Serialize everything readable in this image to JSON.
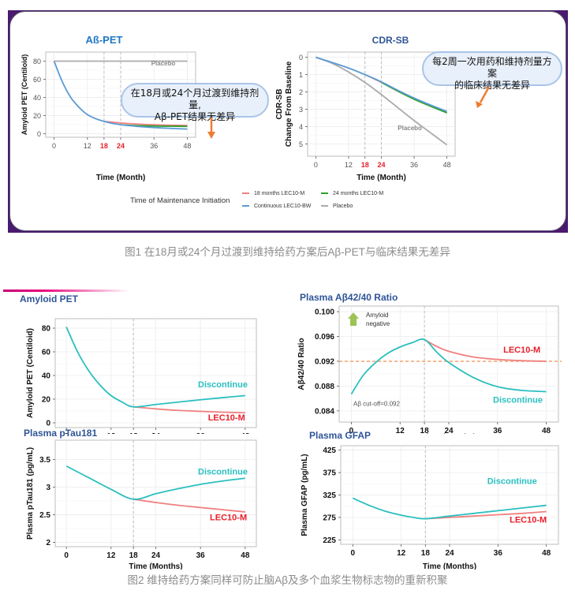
{
  "figure1": {
    "caption": "图1 在18月或24个月过渡到维持给药方案后Aβ-PET与临床结果无差异",
    "legend": {
      "title": "Time of Maintenance Initiation",
      "items": [
        {
          "label": "18 months LEC10-M",
          "color": "#f08080"
        },
        {
          "label": "24 months LEC10-M",
          "color": "#2ca02c"
        },
        {
          "label": "Continuous LEC10-BW",
          "color": "#5b9bd5"
        },
        {
          "label": "Placebo",
          "color": "#aaaaaa"
        }
      ]
    },
    "callout_left": {
      "line1": "在18月或24个月过渡到维持剂量,",
      "line2": "Aβ-PET结果无差异"
    },
    "callout_right": {
      "line1": "每2周一次用药和维持剂量方案",
      "line2": "的临床结果无差异"
    }
  },
  "figure2": {
    "caption": "图2 维持给药方案同样可防止脑Aβ及多个血浆生物标志物的重新积聚"
  },
  "colors": {
    "title_blue": "#2f5597",
    "title_blue_top": "#1f77c4",
    "red_tick": "#e8202a",
    "teal": "#2bbfbf",
    "salmon": "#f08080",
    "arrow": "#ed7d31"
  },
  "chart_data": [
    {
      "id": "abpet",
      "type": "line",
      "title": "Aß-PET",
      "xlabel": "Time (Month)",
      "ylabel": "Amyloid PET (Centiloid)",
      "xlim": [
        -3,
        51
      ],
      "ylim": [
        -4,
        90
      ],
      "xticks": [
        0,
        12,
        18,
        24,
        36,
        48
      ],
      "xtick_labels": [
        "0",
        "12",
        "18",
        "24",
        "36",
        "48"
      ],
      "xtick_highlight": [
        "18",
        "24"
      ],
      "yticks": [
        0,
        20,
        40,
        60,
        80
      ],
      "ytick_labels": [
        "0",
        "20",
        "40",
        "60",
        "80"
      ],
      "vlines": [
        18,
        24
      ],
      "annotations": [
        {
          "text": "Placebo",
          "x": 35,
          "y": 75
        }
      ],
      "series": [
        {
          "name": "Placebo",
          "color": "#aaaaaa",
          "x": [
            0,
            48
          ],
          "y": [
            80,
            80
          ]
        },
        {
          "name": "18 months LEC10-M",
          "color": "#f08080",
          "x": [
            18,
            24,
            30,
            36,
            42,
            48
          ],
          "y": [
            13.5,
            11.8,
            10.6,
            9.8,
            9.3,
            9
          ]
        },
        {
          "name": "24 months LEC10-M",
          "color": "#2ca02c",
          "x": [
            24,
            30,
            36,
            42,
            48
          ],
          "y": [
            9.8,
            8.8,
            8.4,
            8.2,
            8
          ]
        },
        {
          "name": "Continuous LEC10-BW",
          "color": "#5b9bd5",
          "x": [
            0,
            3,
            6,
            9,
            12,
            15,
            18,
            21,
            24,
            30,
            36,
            42,
            48
          ],
          "y": [
            80,
            57,
            40,
            29,
            21,
            16.5,
            13.5,
            11.3,
            9.8,
            8,
            6.7,
            5.8,
            5
          ]
        }
      ]
    },
    {
      "id": "cdrsb",
      "type": "line",
      "title": "CDR-SB",
      "xlabel": "Time (Month)",
      "ylabel": "CDR-SB",
      "ylabel2": "Change From Baseline",
      "xlim": [
        -3,
        51
      ],
      "ylim": [
        -0.3,
        5.7
      ],
      "y_inverted": true,
      "xticks": [
        0,
        12,
        18,
        24,
        36,
        48
      ],
      "xtick_labels": [
        "0",
        "12",
        "18",
        "24",
        "36",
        "48"
      ],
      "xtick_highlight": [
        "18",
        "24"
      ],
      "yticks": [
        0,
        1,
        2,
        3,
        4,
        5
      ],
      "ytick_labels": [
        "0",
        "1",
        "2",
        "3",
        "4",
        "5"
      ],
      "vlines": [
        18,
        24
      ],
      "annotations": [
        {
          "text": "Placebo",
          "x": 30,
          "y": 4.2
        }
      ],
      "series": [
        {
          "name": "Placebo",
          "color": "#aaaaaa",
          "x": [
            0,
            6,
            12,
            18,
            24,
            30,
            36,
            42,
            48
          ],
          "y": [
            0,
            0.35,
            0.85,
            1.45,
            2.15,
            2.9,
            3.65,
            4.35,
            5.05
          ]
        },
        {
          "name": "18 months LEC10-M",
          "color": "#f08080",
          "x": [
            18,
            24,
            30,
            36,
            42,
            48
          ],
          "y": [
            1.0,
            1.45,
            1.95,
            2.4,
            2.8,
            3.2
          ]
        },
        {
          "name": "24 months LEC10-M",
          "color": "#2ca02c",
          "x": [
            24,
            30,
            36,
            42,
            48
          ],
          "y": [
            1.45,
            1.95,
            2.42,
            2.82,
            3.2
          ]
        },
        {
          "name": "Continuous LEC10-BW",
          "color": "#5b9bd5",
          "x": [
            0,
            6,
            12,
            18,
            24,
            30,
            36,
            42,
            48
          ],
          "y": [
            0,
            0.3,
            0.62,
            1.0,
            1.42,
            1.9,
            2.35,
            2.75,
            3.12
          ]
        }
      ]
    },
    {
      "id": "amyloid-pet",
      "type": "line",
      "title": "Amyloid PET",
      "xlabel": "Time (Months)",
      "ylabel": "Amyloid PET (Centiloid)",
      "xlim": [
        -3,
        51
      ],
      "ylim": [
        -4,
        88
      ],
      "xticks": [
        0,
        12,
        18,
        24,
        36,
        48
      ],
      "xtick_labels": [
        "0",
        "12",
        "18",
        "24",
        "36",
        "48"
      ],
      "yticks": [
        0,
        20,
        40,
        60,
        80
      ],
      "ytick_labels": [
        "0",
        "20",
        "40",
        "60",
        "80"
      ],
      "vlines": [
        18
      ],
      "labels": [
        {
          "text": "Discontinue",
          "color": "#2bbfbf",
          "x": 42,
          "y": 30
        },
        {
          "text": "LEC10-M",
          "color": "#e8202a",
          "x": 43,
          "y": 2
        }
      ],
      "series": [
        {
          "name": "LEC10-M",
          "color": "#f08080",
          "x": [
            18,
            24,
            30,
            36,
            42,
            48
          ],
          "y": [
            13.5,
            11.8,
            10.5,
            9.7,
            9,
            8.5
          ]
        },
        {
          "name": "Discontinue",
          "color": "#2bbfbf",
          "x": [
            0,
            3,
            6,
            9,
            12,
            15,
            18,
            24,
            30,
            36,
            42,
            48
          ],
          "y": [
            81,
            60,
            44,
            32,
            23,
            17.5,
            13.5,
            15.5,
            17.5,
            19.5,
            21.3,
            23
          ]
        }
      ]
    },
    {
      "id": "ab4240",
      "type": "line",
      "title": "Plasma Aβ42/40 Ratio",
      "xlabel": "Time (Months)",
      "ylabel": "Aβ42/40 Ratio",
      "xlim": [
        -3,
        51
      ],
      "ylim": [
        0.0822,
        0.1009
      ],
      "xticks": [
        0,
        12,
        18,
        24,
        36,
        48
      ],
      "xtick_labels": [
        "0",
        "12",
        "18",
        "24",
        "36",
        "48"
      ],
      "yticks": [
        0.084,
        0.088,
        0.092,
        0.096,
        0.1
      ],
      "ytick_labels": [
        "0.084",
        "0.088",
        "0.092",
        "0.096",
        "0.100"
      ],
      "vlines": [
        18
      ],
      "hline": {
        "y": 0.092,
        "color": "#f4a46b"
      },
      "annotations": [
        {
          "text": "Aβ cut-off=0.092",
          "x": 0.5,
          "y": 0.0848
        }
      ],
      "amyloid_negative_label": [
        "Amyloid",
        "negative"
      ],
      "labels": [
        {
          "text": "LEC10-M",
          "color": "#e8202a",
          "x": 42,
          "y": 0.0934
        },
        {
          "text": "Discontinue",
          "color": "#2bbfbf",
          "x": 41,
          "y": 0.0853
        }
      ],
      "series": [
        {
          "name": "LEC10-M",
          "color": "#f08080",
          "x": [
            18,
            21,
            24,
            30,
            36,
            42,
            48
          ],
          "y": [
            0.0955,
            0.0944,
            0.0936,
            0.0927,
            0.0923,
            0.0921,
            0.092
          ]
        },
        {
          "name": "Discontinue",
          "color": "#2bbfbf",
          "x": [
            0,
            3,
            6,
            9,
            12,
            15,
            18,
            21,
            24,
            30,
            36,
            42,
            48
          ],
          "y": [
            0.0867,
            0.0898,
            0.0918,
            0.0933,
            0.0943,
            0.095,
            0.0955,
            0.0935,
            0.0918,
            0.0894,
            0.0879,
            0.0873,
            0.0871
          ]
        }
      ]
    },
    {
      "id": "ptau181",
      "type": "line",
      "title": "Plasma pTau181",
      "xlabel": "Time (Months)",
      "ylabel": "Plasma pTau181 (pg/mL)",
      "xlim": [
        -3,
        51
      ],
      "ylim": [
        1.92,
        3.85
      ],
      "xticks": [
        0,
        12,
        18,
        24,
        36,
        48
      ],
      "xtick_labels": [
        "0",
        "12",
        "18",
        "24",
        "36",
        "48"
      ],
      "yticks": [
        2,
        2.5,
        3,
        3.5
      ],
      "ytick_labels": [
        "2",
        "2.5",
        "3",
        "3.5"
      ],
      "vlines": [
        18
      ],
      "labels": [
        {
          "text": "Discontinue",
          "color": "#2bbfbf",
          "x": 42,
          "y": 3.23
        },
        {
          "text": "LEC10-M",
          "color": "#e8202a",
          "x": 43.5,
          "y": 2.4
        }
      ],
      "series": [
        {
          "name": "LEC10-M",
          "color": "#f08080",
          "x": [
            18,
            24,
            30,
            36,
            42,
            48
          ],
          "y": [
            2.78,
            2.72,
            2.67,
            2.63,
            2.59,
            2.55
          ]
        },
        {
          "name": "Discontinue",
          "color": "#2bbfbf",
          "x": [
            0,
            6,
            12,
            18,
            24,
            30,
            36,
            42,
            48
          ],
          "y": [
            3.38,
            3.17,
            2.96,
            2.78,
            2.88,
            2.97,
            3.05,
            3.11,
            3.16
          ]
        }
      ]
    },
    {
      "id": "gfap",
      "type": "line",
      "title": "Plasma GFAP",
      "xlabel": "Time (Months)",
      "ylabel": "Plasma GFAP (pg/mL)",
      "xlim": [
        -3,
        51
      ],
      "ylim": [
        215,
        435
      ],
      "xticks": [
        0,
        12,
        18,
        24,
        36,
        48
      ],
      "xtick_labels": [
        "0",
        "12",
        "18",
        "24",
        "36",
        "48"
      ],
      "yticks": [
        225,
        275,
        325,
        375,
        425
      ],
      "ytick_labels": [
        "225",
        "275",
        "325",
        "375",
        "425"
      ],
      "vlines": [
        18
      ],
      "labels": [
        {
          "text": "Discontinue",
          "color": "#2bbfbf",
          "x": 39.5,
          "y": 350
        },
        {
          "text": "LEC10-M",
          "color": "#e8202a",
          "x": 43.5,
          "y": 263
        }
      ],
      "series": [
        {
          "name": "LEC10-M",
          "color": "#f08080",
          "x": [
            18,
            24,
            30,
            36,
            42,
            48
          ],
          "y": [
            272,
            275,
            278,
            281,
            284,
            288
          ]
        },
        {
          "name": "Discontinue",
          "color": "#2bbfbf",
          "x": [
            0,
            4,
            8,
            12,
            15,
            18,
            24,
            30,
            36,
            42,
            48
          ],
          "y": [
            318,
            302,
            289,
            280,
            275,
            272,
            278,
            284,
            290,
            296,
            302
          ]
        }
      ]
    }
  ]
}
